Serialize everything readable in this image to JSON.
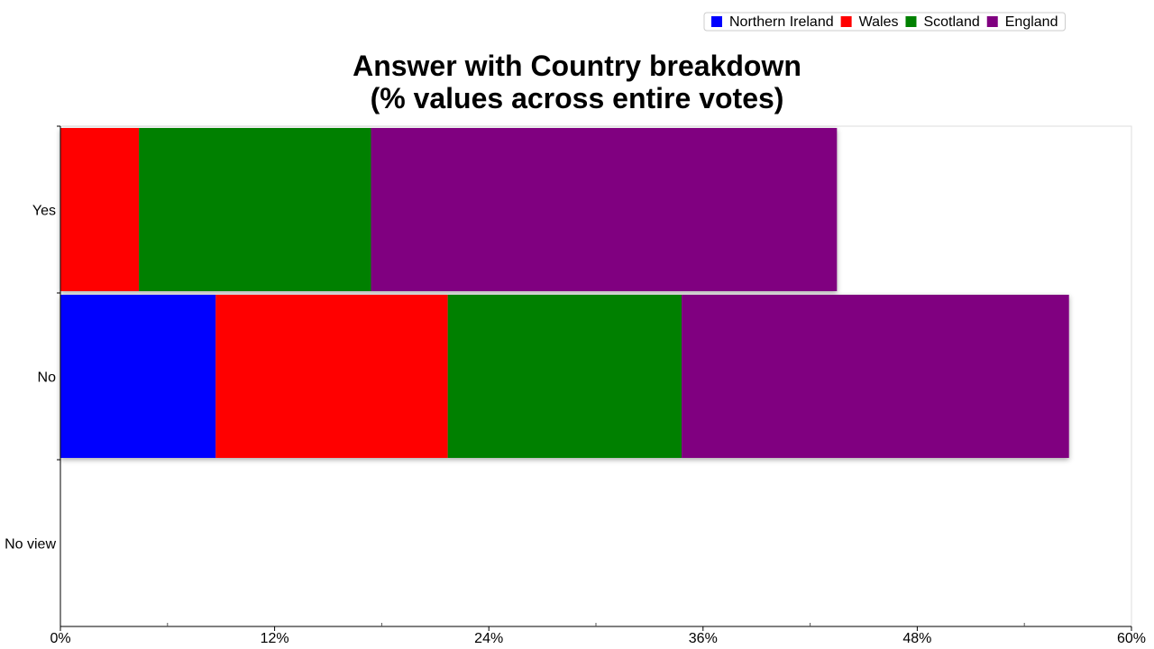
{
  "chart_data": {
    "type": "bar",
    "orientation": "horizontal",
    "stacked": true,
    "title_lines": [
      "Answer with Country breakdown",
      "(% values across entire votes)"
    ],
    "categories": [
      "Yes",
      "No",
      "No view"
    ],
    "series": [
      {
        "name": "Northern Ireland",
        "color": "#0000ff",
        "values": [
          0,
          8.7,
          0
        ]
      },
      {
        "name": "Wales",
        "color": "#ff0000",
        "values": [
          4.4,
          13.0,
          0
        ]
      },
      {
        "name": "Scotland",
        "color": "#008000",
        "values": [
          13.0,
          13.1,
          0
        ]
      },
      {
        "name": "England",
        "color": "#800080",
        "values": [
          26.1,
          21.7,
          0
        ]
      }
    ],
    "xlim": [
      0,
      60
    ],
    "x_ticks": [
      "0%",
      "12%",
      "24%",
      "36%",
      "48%",
      "60%"
    ],
    "x_minor_ticks": [
      6,
      18,
      30,
      42,
      54
    ],
    "legend_position": "top-right",
    "grid": false
  }
}
